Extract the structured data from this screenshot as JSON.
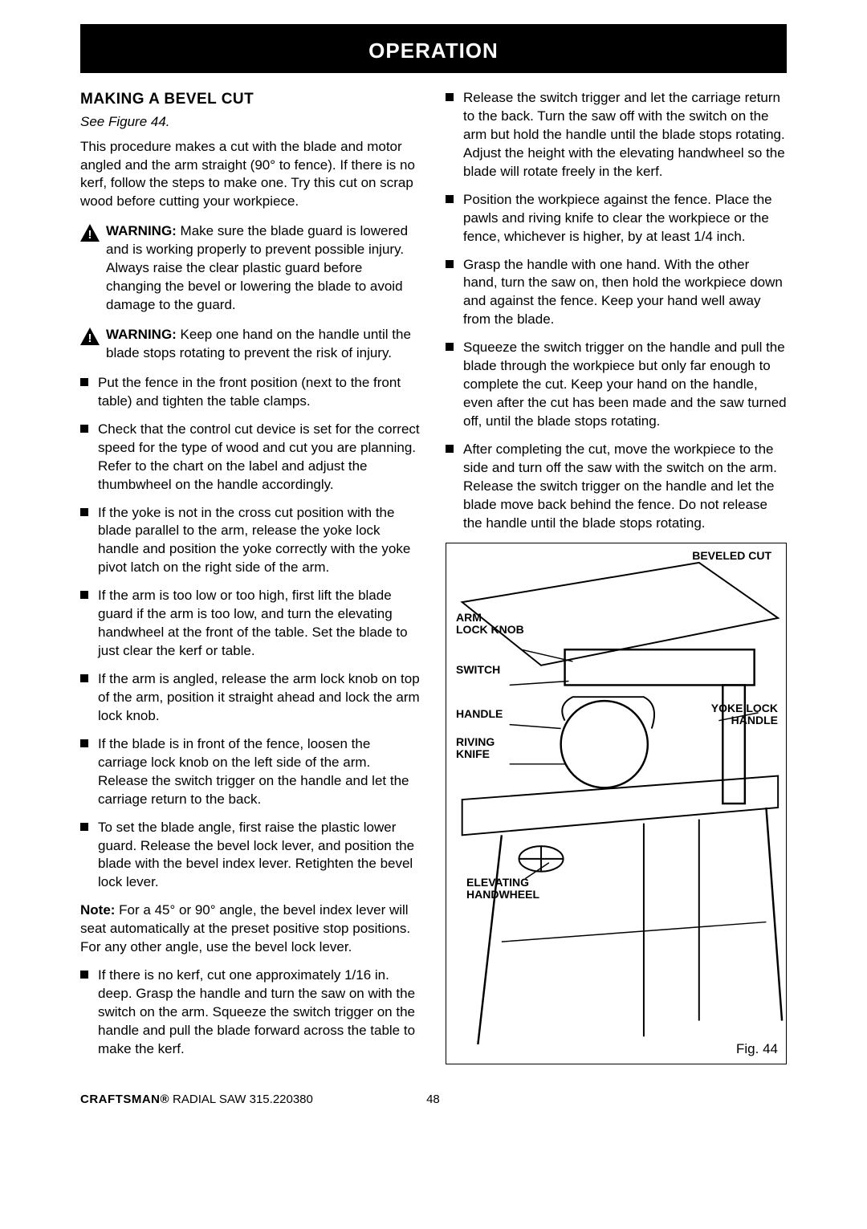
{
  "banner": "OPERATION",
  "left": {
    "title": "MAKING A BEVEL CUT",
    "seeFig": "See Figure 44.",
    "intro": "This procedure makes a cut with the blade and motor angled and the arm straight (90° to fence). If there is no kerf, follow the steps to make one. Try this cut on scrap wood before cutting your workpiece.",
    "warn1_label": "WARNING:",
    "warn1": " Make sure the blade guard is lowered and is working properly to prevent possible injury. Always raise the clear plastic guard before changing the bevel or lowering the blade to avoid damage to the guard.",
    "warn2_label": "WARNING:",
    "warn2": " Keep one hand on the handle until the blade stops rotating to prevent the risk of injury.",
    "bullets1": [
      "Put the fence in the front position (next to the front table) and tighten the table clamps.",
      "Check that the control cut device is set for the correct speed for the type of wood and cut you are planning. Refer to the chart on the label and adjust the thumbwheel on the handle accordingly.",
      "If the yoke is not in the cross cut position with the blade parallel to the arm, release the yoke lock handle and position the yoke correctly with the yoke pivot latch on the right side of the arm.",
      "If the arm is too low or too high, first lift the blade guard if the arm is too low, and turn the elevating handwheel at the front of the table. Set the blade to just clear the kerf or table.",
      "If the arm is angled, release the arm lock knob on top of the arm, position it straight ahead and lock the arm lock knob.",
      "If the blade is in front of the fence, loosen the carriage lock knob on the left side of the arm. Release the switch trigger on the handle and let the carriage return to the back.",
      "To set the blade angle, first raise the plastic lower guard. Release the bevel lock lever, and position the blade with the bevel index lever. Retighten the bevel lock lever."
    ],
    "note_label": "Note:",
    "note": " For a 45° or 90° angle, the bevel index lever will seat automatically at the preset positive stop positions. For any other angle, use the bevel lock lever.",
    "bullets2": [
      "If there is no kerf, cut one approximately 1/16 in. deep. Grasp the handle and turn the saw on with the switch on the arm. Squeeze the switch trigger on the handle and pull the blade forward across the table to make the kerf."
    ]
  },
  "right": {
    "bullets": [
      "Release the switch trigger and let the carriage return to the back. Turn the saw off with the switch on the arm but hold the handle until the blade stops rotating. Adjust the height with the elevating handwheel so the blade will rotate freely in the kerf.",
      "Position the workpiece against the fence. Place the pawls and riving knife to clear the workpiece or the fence, whichever is higher, by at least 1/4 inch.",
      "Grasp the handle with one hand. With the other hand, turn the saw on, then hold the workpiece down and against the fence. Keep your hand well away from the blade.",
      "Squeeze the switch trigger on the handle and pull the blade through the workpiece but only far enough to complete the cut. Keep your hand on the handle, even after the cut has been made and the saw turned off, until the blade stops rotating.",
      "After completing the cut, move the workpiece to the side and turn off the saw with the switch on the arm. Release the switch trigger on the handle and let the blade move back behind the fence. Do not release the handle until the blade stops rotating."
    ],
    "labels": {
      "beveled": "BEVELED CUT",
      "armlock": "ARM\nLOCK KNOB",
      "switch": "SWITCH",
      "handle": "HANDLE",
      "riving": "RIVING\nKNIFE",
      "yoke": "YOKE LOCK\nHANDLE",
      "elevating": "ELEVATING\nHANDWHEEL"
    },
    "figcaption": "Fig. 44"
  },
  "footer": {
    "brand": "CRAFTSMAN®",
    "product": " RADIAL SAW 315.220380",
    "page": "48"
  }
}
